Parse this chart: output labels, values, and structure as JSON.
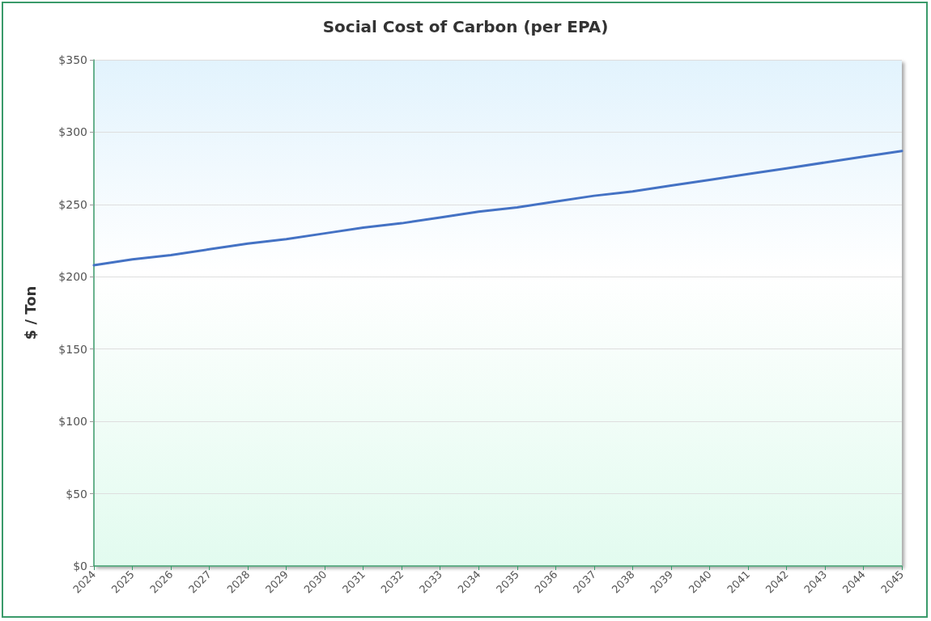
{
  "chart_data": {
    "type": "line",
    "title": "Social Cost of Carbon (per EPA)",
    "ylabel": "$ / Ton",
    "categories": [
      "2024",
      "2025",
      "2026",
      "2027",
      "2028",
      "2029",
      "2030",
      "2031",
      "2032",
      "2033",
      "2034",
      "2035",
      "2036",
      "2037",
      "2038",
      "2039",
      "2040",
      "2041",
      "2042",
      "2043",
      "2044",
      "2045"
    ],
    "series": [
      {
        "color": "#4472c4",
        "values": [
          208,
          212,
          215,
          219,
          223,
          226,
          230,
          234,
          237,
          241,
          245,
          248,
          252,
          256,
          259,
          263,
          267,
          271,
          275,
          279,
          283,
          287
        ]
      }
    ],
    "ylim": [
      0,
      350
    ],
    "yticks": [
      {
        "value": 0,
        "label": "$0"
      },
      {
        "value": 50,
        "label": "$50"
      },
      {
        "value": 100,
        "label": "$100"
      },
      {
        "value": 150,
        "label": "$150"
      },
      {
        "value": 200,
        "label": "$200"
      },
      {
        "value": 250,
        "label": "$250"
      },
      {
        "value": 300,
        "label": "$300"
      },
      {
        "value": 350,
        "label": "$350"
      }
    ],
    "grid": "y",
    "marker": "none",
    "line_style": "solid"
  }
}
